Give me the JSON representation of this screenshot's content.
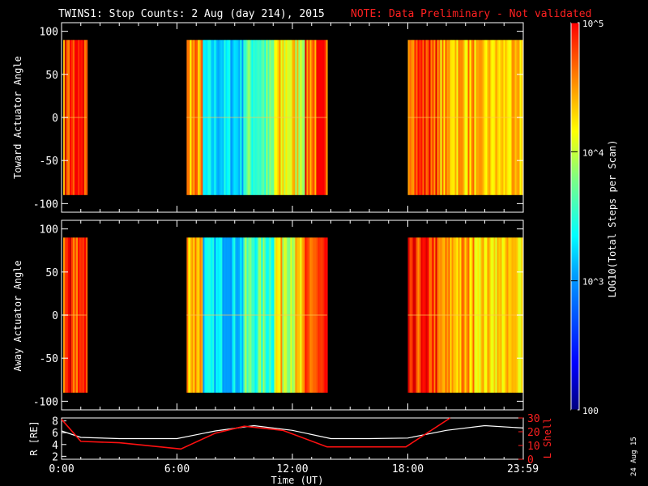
{
  "header": {
    "title": "TWINS1: Stop Counts:  2 Aug (day 214), 2015",
    "note": "NOTE: Data Preliminary - Not validated"
  },
  "colorbar": {
    "label": "LOG10(Total Steps per Scan)",
    "ticks": [
      "100",
      "10^3",
      "10^4",
      "10^5"
    ],
    "range": [
      100,
      100000
    ],
    "scale": "log"
  },
  "side_date": "24 Aug 15",
  "chart_data": [
    {
      "type": "heatmap",
      "ylabel": "Toward Actuator Angle",
      "ylim": [
        -110,
        110
      ],
      "yticks": [
        "100",
        "50",
        "0",
        "-50",
        "-100"
      ],
      "y_extent": [
        -90,
        90
      ],
      "x_hours_range": [
        0,
        24
      ],
      "data_blocks_hours": [
        [
          -0.2,
          1.3
        ],
        [
          6.5,
          13.8
        ],
        [
          18.0,
          24
        ]
      ]
    },
    {
      "type": "heatmap",
      "ylabel": "Away Actuator Angle",
      "ylim": [
        -110,
        110
      ],
      "yticks": [
        "100",
        "50",
        "0",
        "-50",
        "-100"
      ],
      "y_extent": [
        -90,
        90
      ],
      "x_hours_range": [
        0,
        24
      ],
      "data_blocks_hours": [
        [
          -0.2,
          1.3
        ],
        [
          6.5,
          13.8
        ],
        [
          18.0,
          24
        ]
      ]
    },
    {
      "type": "line",
      "xlabel": "Time (UT)",
      "xticks": [
        "0:00",
        "6:00",
        "12:00",
        "18:00",
        "23:59"
      ],
      "ylabel_left": "R [RE]",
      "ylabel_right": "L Shell",
      "yticks_left": [
        "8",
        "6",
        "4",
        "2"
      ],
      "yticks_right": [
        "30",
        "20",
        "10",
        "0"
      ],
      "ylim_left": [
        1.5,
        8.5
      ],
      "ylim_right": [
        0,
        30
      ],
      "series": [
        {
          "color": "#ffffff",
          "hours": [
            0,
            1,
            3,
            6,
            8,
            10,
            12,
            14,
            16,
            18,
            20,
            22,
            24
          ],
          "values": [
            6.3,
            5.2,
            5.0,
            5.0,
            6.3,
            7.2,
            6.4,
            5.0,
            5.0,
            5.1,
            6.4,
            7.2,
            6.8
          ]
        },
        {
          "color": "#ff1010",
          "hours": [
            0,
            1,
            3,
            6.2,
            8,
            9.5,
            11.5,
            13.8,
            15,
            17.9,
            20.2
          ],
          "values": [
            29,
            13,
            12,
            7.5,
            19,
            24,
            21,
            9,
            9,
            9,
            30
          ]
        }
      ]
    }
  ]
}
